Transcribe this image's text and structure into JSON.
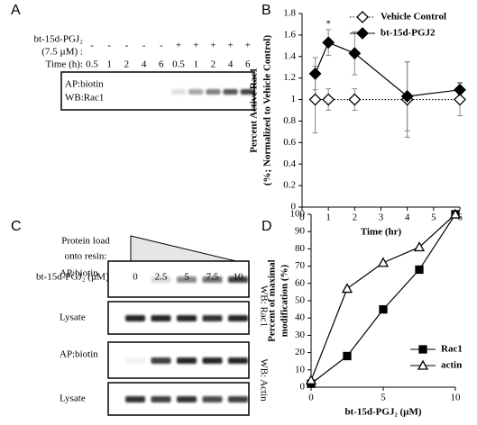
{
  "panel_labels": [
    "A",
    "B",
    "C",
    "D"
  ],
  "blot_a": {
    "treatment_label": "bt-15d-PGJ₂",
    "treatment_dose": "(7.5 µM) :",
    "treatment": [
      "-",
      "-",
      "-",
      "-",
      "-",
      "+",
      "+",
      "+",
      "+",
      "+"
    ],
    "time_label": "Time (h):",
    "times": [
      "0.5",
      "1",
      "2",
      "4",
      "6",
      "0.5",
      "1",
      "2",
      "4",
      "6"
    ],
    "rows": [
      "AP:biotin",
      "WB:Rac1"
    ]
  },
  "blot_c": {
    "load_label": [
      "Protein load",
      "onto resin:"
    ],
    "dose_label": "bt-15d-PGJ₂ (µM):",
    "doses": [
      "0",
      "2.5",
      "5",
      "7.5",
      "10"
    ],
    "rows": [
      "AP:biotin",
      "Lysate",
      "AP:biotin",
      "Lysate"
    ],
    "groups": [
      "WB: Rac1",
      "WB: Actin"
    ]
  },
  "chart_data": [
    {
      "type": "line",
      "ylabel": [
        "Percent Active Rac1",
        "(%; Normalized to Vehicle Control)"
      ],
      "xlabel": "Time (hr)",
      "x": [
        0.5,
        1,
        2,
        4,
        6
      ],
      "xlim": [
        0,
        6
      ],
      "xticks": [
        0,
        1,
        2,
        3,
        4,
        5,
        6
      ],
      "ylim": [
        0,
        1.8
      ],
      "yticks": [
        0,
        0.2,
        0.4,
        0.6,
        0.8,
        1,
        1.2,
        1.4,
        1.6,
        1.8
      ],
      "legend": "upper right",
      "annotations": [
        {
          "text": "*",
          "x": 1
        }
      ],
      "series": [
        {
          "name": "Vehicle Control",
          "color": "#000000",
          "marker": "diamond-open",
          "linestyle": "dotted",
          "values": [
            1,
            1,
            1,
            1,
            1
          ],
          "errors": [
            0.31,
            0.1,
            0.1,
            0.35,
            0.15
          ]
        },
        {
          "name": "bt-15d-PGJ2",
          "color": "#000000",
          "marker": "diamond",
          "linestyle": "solid",
          "values": [
            1.24,
            1.53,
            1.43,
            1.03,
            1.09
          ],
          "errors": [
            0.15,
            0.12,
            0.2,
            0.32,
            0.07
          ]
        }
      ]
    },
    {
      "type": "line",
      "ylabel": [
        "Percent of maximal",
        "modification (%)"
      ],
      "xlabel": "bt-15d-PGJ₂ (µM)",
      "x": [
        0,
        2.5,
        5,
        7.5,
        10
      ],
      "xlim": [
        0,
        10
      ],
      "xticks": [
        0,
        5,
        10
      ],
      "ylim": [
        0,
        100
      ],
      "yticks": [
        0,
        10,
        20,
        30,
        40,
        50,
        60,
        70,
        80,
        90,
        100
      ],
      "legend": "lower right",
      "series": [
        {
          "name": "Rac1",
          "color": "#000000",
          "marker": "square",
          "linestyle": "solid",
          "values": [
            2,
            18,
            45,
            68,
            100
          ]
        },
        {
          "name": "actin",
          "color": "#000000",
          "marker": "triangle-open",
          "linestyle": "solid",
          "values": [
            4,
            57,
            72,
            81,
            100
          ]
        }
      ]
    }
  ]
}
